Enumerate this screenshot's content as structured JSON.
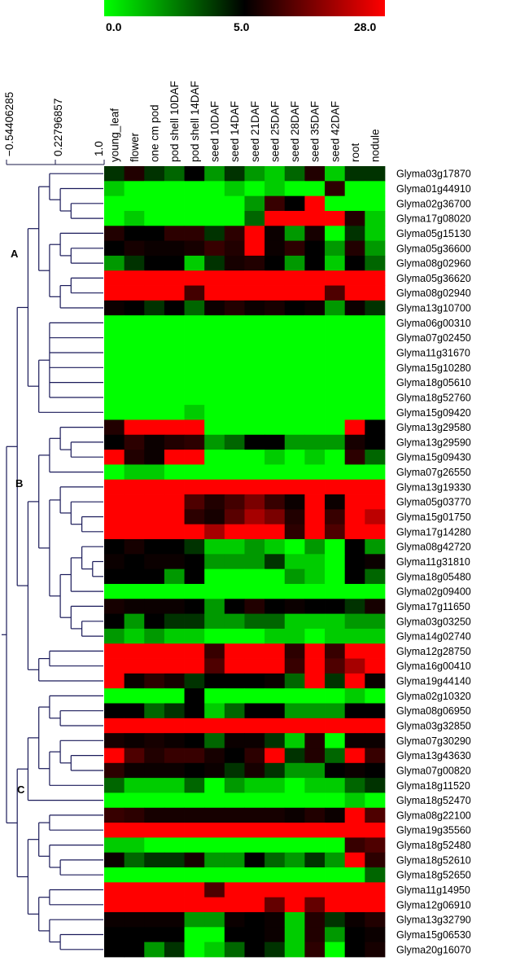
{
  "chart_data": {
    "type": "heatmap",
    "color_scale": {
      "tick_labels": [
        "0.0",
        "5.0",
        "28.0"
      ],
      "stops": [
        {
          "value": 0,
          "color": "#00ff00"
        },
        {
          "value": 5,
          "color": "#000000"
        },
        {
          "value": 28,
          "color": "#ff0000"
        }
      ]
    },
    "dendrogram_scale": [
      "−0.54406285",
      "0.22796857",
      "1.0"
    ],
    "cluster_labels": [
      "A",
      "B",
      "C"
    ],
    "columns": [
      "young_leaf",
      "flower",
      "one cm pod",
      "pod shell 10DAF",
      "pod shell 14DAF",
      "seed 10DAF",
      "seed 14DAF",
      "seed 21DAF",
      "seed 25DAF",
      "seed 28DAF",
      "seed 35DAF",
      "seed 42DAF",
      "root",
      "nodule"
    ],
    "rows": [
      "Glyma03g17870",
      "Glyma01g44910",
      "Glyma02g36700",
      "Glyma17g08020",
      "Glyma05g15130",
      "Glyma05g36600",
      "Glyma08g02960",
      "Glyma05g36620",
      "Glyma08g02940",
      "Glyma13g10700",
      "Glyma06g00310",
      "Glyma07g02450",
      "Glyma11g31670",
      "Glyma15g10280",
      "Glyma18g05610",
      "Glyma18g52760",
      "Glyma15g09420",
      "Glyma13g29580",
      "Glyma13g29590",
      "Glyma15g09430",
      "Glyma07g26550",
      "Glyma13g19330",
      "Glyma05g03770",
      "Glyma15g01750",
      "Glyma17g14280",
      "Glyma08g42720",
      "Glyma11g31810",
      "Glyma18g05480",
      "Glyma02g09400",
      "Glyma17g11650",
      "Glyma03g03250",
      "Glyma14g02740",
      "Glyma12g28750",
      "Glyma16g00410",
      "Glyma19g44140",
      "Glyma02g10320",
      "Glyma08g06950",
      "Glyma03g32850",
      "Glyma07g30290",
      "Glyma13g43630",
      "Glyma07g00820",
      "Glyma18g11520",
      "Glyma18g52470",
      "Glyma08g22100",
      "Glyma19g35560",
      "Glyma18g52480",
      "Glyma18g52610",
      "Glyma18g52650",
      "Glyma11g14950",
      "Glyma12g06910",
      "Glyma13g32790",
      "Glyma15g06530",
      "Glyma20g16070"
    ],
    "values": [
      [
        4,
        8,
        4,
        3,
        5,
        2,
        4,
        2,
        1,
        3,
        8,
        1,
        4,
        4
      ],
      [
        1,
        0,
        0,
        0,
        0,
        0,
        1,
        0,
        1,
        0,
        0,
        9,
        0,
        0
      ],
      [
        0,
        0,
        0,
        0,
        0,
        0,
        0,
        2,
        10,
        5,
        28,
        0,
        0,
        0
      ],
      [
        0,
        1,
        0,
        0,
        0,
        0,
        0,
        3,
        28,
        28,
        28,
        28,
        8,
        1
      ],
      [
        8,
        5,
        5,
        9,
        9,
        4,
        9,
        28,
        6,
        2,
        7,
        0,
        4,
        1
      ],
      [
        5,
        7,
        6,
        6,
        7,
        10,
        8,
        28,
        6,
        9,
        5,
        2,
        8,
        2
      ],
      [
        2,
        4,
        5,
        5,
        1,
        4,
        7,
        8,
        5,
        2,
        5,
        1,
        5,
        3
      ],
      [
        28,
        28,
        28,
        28,
        28,
        28,
        28,
        28,
        28,
        28,
        28,
        28,
        28,
        28
      ],
      [
        28,
        28,
        28,
        28,
        11,
        28,
        28,
        28,
        28,
        28,
        28,
        12,
        28,
        28
      ],
      [
        6,
        5,
        4,
        5,
        3,
        6,
        8,
        6,
        7,
        5,
        6,
        2,
        6,
        4
      ],
      [
        0,
        0,
        0,
        0,
        0,
        0,
        0,
        0,
        0,
        0,
        0,
        0,
        0,
        0
      ],
      [
        0,
        0,
        0,
        0,
        0,
        0,
        0,
        0,
        0,
        0,
        0,
        0,
        0,
        0
      ],
      [
        0,
        0,
        0,
        0,
        0,
        0,
        0,
        0,
        0,
        0,
        0,
        0,
        0,
        0
      ],
      [
        0,
        0,
        0,
        0,
        0,
        0,
        0,
        0,
        0,
        0,
        0,
        0,
        0,
        0
      ],
      [
        0,
        0,
        0,
        0,
        0,
        0,
        0,
        0,
        0,
        0,
        0,
        0,
        0,
        0
      ],
      [
        0,
        0,
        0,
        0,
        0,
        0,
        0,
        0,
        0,
        0,
        0,
        0,
        0,
        0
      ],
      [
        0,
        0,
        0,
        0,
        1,
        0,
        0,
        0,
        0,
        0,
        0,
        0,
        0,
        0
      ],
      [
        8,
        28,
        28,
        28,
        28,
        0,
        0,
        0,
        0,
        0,
        0,
        0,
        28,
        5
      ],
      [
        5,
        9,
        6,
        8,
        9,
        2,
        3,
        5,
        5,
        2,
        2,
        2,
        7,
        5
      ],
      [
        28,
        8,
        6,
        28,
        28,
        0,
        0,
        0,
        1,
        0,
        1,
        0,
        9,
        3
      ],
      [
        0,
        1,
        1,
        0,
        0,
        0,
        0,
        0,
        0,
        0,
        0,
        0,
        0,
        0
      ],
      [
        28,
        28,
        28,
        28,
        28,
        28,
        28,
        28,
        28,
        28,
        28,
        28,
        28,
        28
      ],
      [
        28,
        28,
        28,
        28,
        12,
        8,
        11,
        16,
        10,
        6,
        28,
        6,
        28,
        28
      ],
      [
        28,
        28,
        28,
        28,
        9,
        7,
        13,
        20,
        16,
        8,
        28,
        10,
        28,
        22
      ],
      [
        28,
        28,
        28,
        28,
        28,
        20,
        28,
        28,
        28,
        9,
        28,
        12,
        28,
        28
      ],
      [
        5,
        7,
        5,
        5,
        4,
        1,
        1,
        2,
        1,
        0,
        2,
        0,
        5,
        2
      ],
      [
        6,
        5,
        6,
        6,
        5,
        2,
        2,
        2,
        4,
        1,
        1,
        0,
        5,
        6
      ],
      [
        5,
        5,
        5,
        2,
        5,
        0,
        0,
        0,
        0,
        2,
        1,
        0,
        5,
        3
      ],
      [
        0,
        0,
        0,
        0,
        0,
        0,
        0,
        0,
        0,
        0,
        0,
        0,
        0,
        0
      ],
      [
        7,
        6,
        6,
        6,
        5,
        2,
        5,
        8,
        5,
        6,
        5,
        5,
        4,
        7
      ],
      [
        5,
        2,
        5,
        4,
        4,
        2,
        2,
        3,
        3,
        1,
        1,
        1,
        2,
        2
      ],
      [
        2,
        1,
        2,
        1,
        1,
        0,
        0,
        0,
        1,
        1,
        0,
        1,
        1,
        1
      ],
      [
        28,
        28,
        28,
        28,
        28,
        10,
        28,
        28,
        28,
        9,
        28,
        10,
        28,
        28
      ],
      [
        28,
        28,
        28,
        28,
        28,
        12,
        28,
        28,
        28,
        10,
        28,
        12,
        20,
        28
      ],
      [
        28,
        6,
        9,
        7,
        4,
        5,
        5,
        5,
        6,
        3,
        28,
        4,
        28,
        6
      ],
      [
        0,
        0,
        0,
        0,
        5,
        0,
        0,
        0,
        0,
        0,
        0,
        0,
        1,
        0
      ],
      [
        5,
        5,
        3,
        4,
        5,
        1,
        3,
        5,
        5,
        2,
        2,
        2,
        5,
        5
      ],
      [
        28,
        28,
        28,
        28,
        28,
        28,
        28,
        28,
        28,
        28,
        28,
        28,
        28,
        28
      ],
      [
        7,
        6,
        7,
        6,
        5,
        3,
        6,
        6,
        4,
        1,
        8,
        0,
        6,
        6
      ],
      [
        28,
        12,
        8,
        10,
        10,
        7,
        5,
        9,
        28,
        4,
        8,
        3,
        28,
        10
      ],
      [
        9,
        6,
        6,
        6,
        5,
        6,
        4,
        7,
        4,
        2,
        2,
        5,
        6,
        5
      ],
      [
        3,
        1,
        1,
        1,
        3,
        0,
        2,
        1,
        1,
        0,
        1,
        1,
        3,
        4
      ],
      [
        0,
        0,
        0,
        0,
        0,
        0,
        0,
        0,
        0,
        0,
        0,
        0,
        1,
        0
      ],
      [
        10,
        9,
        7,
        7,
        7,
        7,
        7,
        7,
        7,
        6,
        8,
        6,
        28,
        12
      ],
      [
        28,
        28,
        28,
        28,
        28,
        28,
        28,
        28,
        28,
        28,
        28,
        28,
        28,
        28
      ],
      [
        1,
        1,
        0,
        0,
        0,
        0,
        0,
        0,
        0,
        0,
        0,
        0,
        10,
        12
      ],
      [
        6,
        3,
        4,
        4,
        7,
        2,
        2,
        5,
        3,
        2,
        4,
        2,
        28,
        9
      ],
      [
        0,
        0,
        0,
        0,
        0,
        0,
        0,
        0,
        0,
        0,
        0,
        0,
        0,
        3
      ],
      [
        28,
        28,
        28,
        28,
        28,
        12,
        28,
        28,
        28,
        28,
        28,
        28,
        28,
        28
      ],
      [
        28,
        28,
        28,
        28,
        28,
        28,
        28,
        28,
        14,
        28,
        14,
        28,
        28,
        28
      ],
      [
        6,
        6,
        6,
        6,
        2,
        2,
        6,
        5,
        6,
        1,
        8,
        4,
        6,
        8
      ],
      [
        5,
        5,
        5,
        5,
        0,
        0,
        5,
        5,
        6,
        1,
        8,
        2,
        5,
        6
      ],
      [
        5,
        5,
        2,
        4,
        0,
        1,
        3,
        5,
        4,
        1,
        9,
        0,
        5,
        7
      ]
    ]
  }
}
